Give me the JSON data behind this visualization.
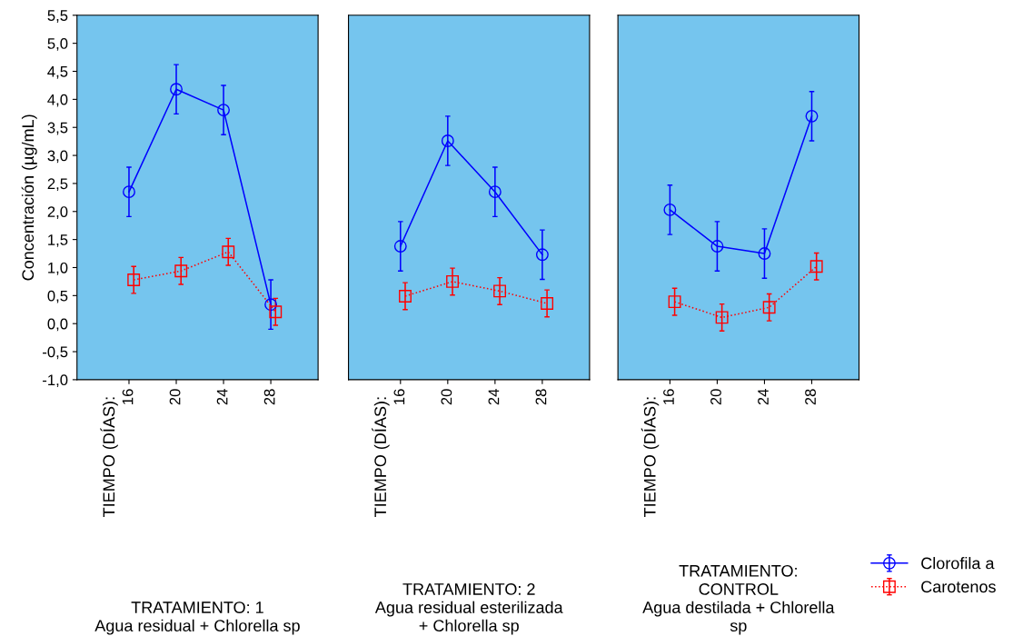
{
  "chart_data": [
    {
      "type": "line",
      "title": "TRATAMIENTO: 1\nAgua residual + Chlorella sp",
      "annotations": [
        "TIEMPO (DÍAS):"
      ],
      "ylabel": "Concentración (µg/mL)",
      "categories": [
        "16",
        "20",
        "24",
        "28"
      ],
      "series": [
        {
          "color": "#0000ff",
          "marker": "circle",
          "line_style": "solid",
          "values": [
            2.35,
            4.18,
            3.81,
            0.34
          ],
          "errors": [
            0.44,
            0.44,
            0.44,
            0.44
          ]
        },
        {
          "color": "#ff0000",
          "marker": "square",
          "line_style": "dotted",
          "values": [
            0.78,
            0.94,
            1.28,
            0.21
          ],
          "errors": [
            0.24,
            0.24,
            0.24,
            0.24
          ]
        }
      ],
      "ylim": [
        -1.0,
        5.5
      ],
      "yticks": [
        {
          "value": -1.0,
          "label": "-1,0"
        },
        {
          "value": -0.5,
          "label": "-0,5"
        },
        {
          "value": 0.0,
          "label": "0,0"
        },
        {
          "value": 0.5,
          "label": "0,5"
        },
        {
          "value": 1.0,
          "label": "1,0"
        },
        {
          "value": 1.5,
          "label": "1,5"
        },
        {
          "value": 2.0,
          "label": "2,0"
        },
        {
          "value": 2.5,
          "label": "2,5"
        },
        {
          "value": 3.0,
          "label": "3,0"
        },
        {
          "value": 3.5,
          "label": "3,5"
        },
        {
          "value": 4.0,
          "label": "4,0"
        },
        {
          "value": 4.5,
          "label": "4,5"
        },
        {
          "value": 5.0,
          "label": "5,0"
        },
        {
          "value": 5.5,
          "label": "5,5"
        }
      ],
      "grid": false
    },
    {
      "type": "line",
      "title": "TRATAMIENTO: 2\nAgua residual esterilizada\n+ Chlorella sp",
      "annotations": [
        "TIEMPO (DÍAS):"
      ],
      "categories": [
        "16",
        "20",
        "24",
        "28"
      ],
      "series": [
        {
          "color": "#0000ff",
          "marker": "circle",
          "line_style": "solid",
          "values": [
            1.38,
            3.26,
            2.35,
            1.23
          ],
          "errors": [
            0.44,
            0.44,
            0.44,
            0.44
          ]
        },
        {
          "color": "#ff0000",
          "marker": "square",
          "line_style": "dotted",
          "values": [
            0.49,
            0.75,
            0.58,
            0.36
          ],
          "errors": [
            0.24,
            0.24,
            0.24,
            0.24
          ]
        }
      ],
      "ylim": [
        -1.0,
        5.5
      ],
      "tick_labels": "x",
      "grid": false
    },
    {
      "type": "line",
      "title": "TRATAMIENTO:\nCONTROL\nAgua destilada + Chlorella\nsp",
      "annotations": [
        "TIEMPO (DÍAS):"
      ],
      "categories": [
        "16",
        "20",
        "24",
        "28"
      ],
      "series": [
        {
          "name": "Clorofila a",
          "color": "#0000ff",
          "marker": "circle",
          "line_style": "solid",
          "values": [
            2.03,
            1.38,
            1.25,
            3.7
          ],
          "errors": [
            0.44,
            0.44,
            0.44,
            0.44
          ]
        },
        {
          "name": "Carotenos",
          "color": "#ff0000",
          "marker": "square",
          "line_style": "dotted",
          "values": [
            0.39,
            0.11,
            0.29,
            1.02
          ],
          "errors": [
            0.24,
            0.24,
            0.24,
            0.24
          ]
        }
      ],
      "ylim": [
        -1.0,
        5.5
      ],
      "tick_labels": "x",
      "grid": false,
      "legend": "bottom right"
    }
  ]
}
